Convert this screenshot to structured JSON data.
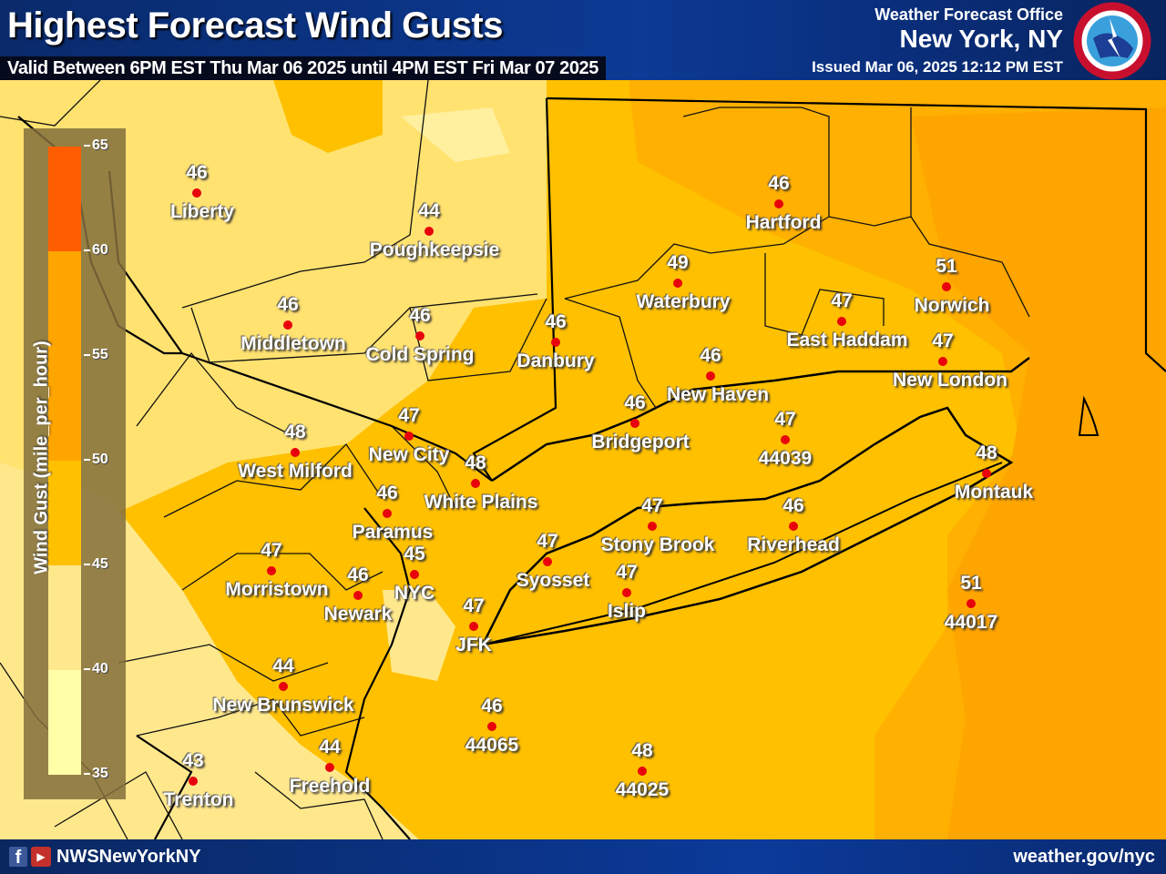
{
  "header": {
    "title": "Highest Forecast Wind Gusts",
    "valid": "Valid Between 6PM EST Thu Mar 06 2025 until 4PM EST Fri Mar 07 2025",
    "office_label": "Weather Forecast Office",
    "office_name": "New York, NY",
    "issued": "Issued Mar 06, 2025 12:12 PM EST",
    "logo_text": "NATIONAL WEATHER SERVICE"
  },
  "legend": {
    "title": "Wind Gust (mile_per_hour)",
    "ticks": [
      "65",
      "60",
      "55",
      "50",
      "45",
      "40",
      "35"
    ],
    "bins": [
      {
        "min": 35,
        "max": 40,
        "color": "#FFFFA8"
      },
      {
        "min": 40,
        "max": 45,
        "color": "#FFE88C"
      },
      {
        "min": 45,
        "max": 50,
        "color": "#FFC000"
      },
      {
        "min": 50,
        "max": 60,
        "color": "#FFA500"
      },
      {
        "min": 60,
        "max": 65,
        "color": "#FF5E00"
      }
    ]
  },
  "stations": [
    {
      "name": "Liberty",
      "value": "46"
    },
    {
      "name": "Poughkeepsie",
      "value": "44"
    },
    {
      "name": "Middletown",
      "value": "46"
    },
    {
      "name": "Cold Spring",
      "value": "46"
    },
    {
      "name": "Danbury",
      "value": "46"
    },
    {
      "name": "Waterbury",
      "value": "49"
    },
    {
      "name": "Hartford",
      "value": "46"
    },
    {
      "name": "East Haddam",
      "value": "47"
    },
    {
      "name": "Norwich",
      "value": "51"
    },
    {
      "name": "New London",
      "value": "47"
    },
    {
      "name": "New Haven",
      "value": "46"
    },
    {
      "name": "Bridgeport",
      "value": "46"
    },
    {
      "name": "44039",
      "value": "47"
    },
    {
      "name": "Montauk",
      "value": "48"
    },
    {
      "name": "West Milford",
      "value": "48"
    },
    {
      "name": "New City",
      "value": "47"
    },
    {
      "name": "White Plains",
      "value": "48"
    },
    {
      "name": "Paramus",
      "value": "46"
    },
    {
      "name": "Stony Brook",
      "value": "47"
    },
    {
      "name": "Riverhead",
      "value": "46"
    },
    {
      "name": "Syosset",
      "value": "47"
    },
    {
      "name": "Morristown",
      "value": "47"
    },
    {
      "name": "NYC",
      "value": "45"
    },
    {
      "name": "Newark",
      "value": "46"
    },
    {
      "name": "Islip",
      "value": "47"
    },
    {
      "name": "44017",
      "value": "51"
    },
    {
      "name": "JFK",
      "value": "47"
    },
    {
      "name": "New Brunswick",
      "value": "44"
    },
    {
      "name": "44065",
      "value": "46"
    },
    {
      "name": "Freehold",
      "value": "44"
    },
    {
      "name": "44025",
      "value": "48"
    },
    {
      "name": "Trenton",
      "value": "43"
    }
  ],
  "footer": {
    "social_handle": "NWSNewYorkNY",
    "website": "weather.gov/nyc",
    "icons": [
      "facebook-icon",
      "youtube-icon"
    ]
  }
}
